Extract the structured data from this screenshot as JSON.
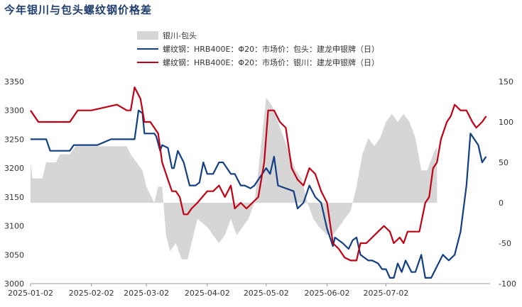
{
  "chart_data": {
    "type": "line",
    "title": "今年银川与包头螺纹钢价格差",
    "x_ticks": [
      "2025-01-02",
      "2025-02-02",
      "2025-03-02",
      "2025-04-02",
      "2025-05-02",
      "2025-06-02",
      "2025-07-02"
    ],
    "y_left": {
      "min": 3000,
      "max": 3350,
      "ticks": [
        3000,
        3050,
        3100,
        3150,
        3200,
        3250,
        3300,
        3350
      ]
    },
    "y_right": {
      "min": -100,
      "max": 150,
      "ticks": [
        -100,
        -50,
        0,
        50,
        100,
        150
      ]
    },
    "grid": false,
    "legend_position": "top",
    "series": [
      {
        "name": "银川-包头",
        "type": "area",
        "axis": "right",
        "color": "#d6d6d6",
        "points": [
          [
            "2025-01-02",
            50
          ],
          [
            "2025-01-03",
            30
          ],
          [
            "2025-01-08",
            30
          ],
          [
            "2025-01-10",
            50
          ],
          [
            "2025-01-15",
            50
          ],
          [
            "2025-01-17",
            60
          ],
          [
            "2025-01-22",
            60
          ],
          [
            "2025-01-25",
            70
          ],
          [
            "2025-02-05",
            70
          ],
          [
            "2025-02-20",
            70
          ],
          [
            "2025-02-22",
            60
          ],
          [
            "2025-02-25",
            50
          ],
          [
            "2025-02-28",
            40
          ],
          [
            "2025-03-02",
            20
          ],
          [
            "2025-03-04",
            10
          ],
          [
            "2025-03-06",
            0
          ],
          [
            "2025-03-08",
            20
          ],
          [
            "2025-03-10",
            20
          ],
          [
            "2025-03-12",
            -40
          ],
          [
            "2025-03-14",
            -60
          ],
          [
            "2025-03-17",
            -50
          ],
          [
            "2025-03-20",
            -70
          ],
          [
            "2025-03-23",
            -70
          ],
          [
            "2025-03-26",
            -40
          ],
          [
            "2025-03-28",
            -20
          ],
          [
            "2025-04-02",
            -30
          ],
          [
            "2025-04-05",
            -40
          ],
          [
            "2025-04-08",
            -50
          ],
          [
            "2025-04-11",
            -40
          ],
          [
            "2025-04-14",
            -20
          ],
          [
            "2025-04-17",
            -40
          ],
          [
            "2025-04-20",
            -30
          ],
          [
            "2025-04-23",
            -20
          ],
          [
            "2025-04-26",
            0
          ],
          [
            "2025-04-28",
            40
          ],
          [
            "2025-05-02",
            130
          ],
          [
            "2025-05-05",
            120
          ],
          [
            "2025-05-08",
            100
          ],
          [
            "2025-05-11",
            80
          ],
          [
            "2025-05-14",
            60
          ],
          [
            "2025-05-17",
            40
          ],
          [
            "2025-05-20",
            30
          ],
          [
            "2025-05-23",
            0
          ],
          [
            "2025-05-26",
            -20
          ],
          [
            "2025-05-29",
            -30
          ],
          [
            "2025-06-02",
            -40
          ],
          [
            "2025-06-05",
            -40
          ],
          [
            "2025-06-08",
            -30
          ],
          [
            "2025-06-11",
            -20
          ],
          [
            "2025-06-14",
            -10
          ],
          [
            "2025-06-17",
            20
          ],
          [
            "2025-06-20",
            60
          ],
          [
            "2025-06-23",
            80
          ],
          [
            "2025-06-26",
            70
          ],
          [
            "2025-06-29",
            80
          ],
          [
            "2025-07-02",
            100
          ],
          [
            "2025-07-05",
            110
          ],
          [
            "2025-07-08",
            100
          ],
          [
            "2025-07-11",
            110
          ],
          [
            "2025-07-14",
            100
          ],
          [
            "2025-07-17",
            80
          ],
          [
            "2025-07-20",
            40
          ],
          [
            "2025-07-23",
            40
          ],
          [
            "2025-07-26",
            60
          ],
          [
            "2025-07-28",
            70
          ]
        ]
      },
      {
        "name": "螺纹钢：HRB400E：Φ20：市场价：包头：建龙申银牌（日）",
        "type": "line",
        "axis": "left",
        "color": "#123f82",
        "points": [
          [
            "2025-01-02",
            3250
          ],
          [
            "2025-01-10",
            3250
          ],
          [
            "2025-01-12",
            3230
          ],
          [
            "2025-01-22",
            3230
          ],
          [
            "2025-01-24",
            3240
          ],
          [
            "2025-02-05",
            3240
          ],
          [
            "2025-02-12",
            3250
          ],
          [
            "2025-02-20",
            3250
          ],
          [
            "2025-02-24",
            3250
          ],
          [
            "2025-02-26",
            3300
          ],
          [
            "2025-02-28",
            3295
          ],
          [
            "2025-03-01",
            3260
          ],
          [
            "2025-03-06",
            3260
          ],
          [
            "2025-03-07",
            3255
          ],
          [
            "2025-03-09",
            3230
          ],
          [
            "2025-03-10",
            3240
          ],
          [
            "2025-03-13",
            3235
          ],
          [
            "2025-03-15",
            3200
          ],
          [
            "2025-03-16",
            3200
          ],
          [
            "2025-03-18",
            3230
          ],
          [
            "2025-03-21",
            3210
          ],
          [
            "2025-03-24",
            3170
          ],
          [
            "2025-03-27",
            3170
          ],
          [
            "2025-03-29",
            3175
          ],
          [
            "2025-03-31",
            3210
          ],
          [
            "2025-04-02",
            3190
          ],
          [
            "2025-04-05",
            3190
          ],
          [
            "2025-04-08",
            3210
          ],
          [
            "2025-04-10",
            3210
          ],
          [
            "2025-04-14",
            3190
          ],
          [
            "2025-04-16",
            3190
          ],
          [
            "2025-04-19",
            3170
          ],
          [
            "2025-04-21",
            3170
          ],
          [
            "2025-04-24",
            3165
          ],
          [
            "2025-04-26",
            3170
          ],
          [
            "2025-04-28",
            3180
          ],
          [
            "2025-05-02",
            3200
          ],
          [
            "2025-05-04",
            3190
          ],
          [
            "2025-05-06",
            3220
          ],
          [
            "2025-05-08",
            3170
          ],
          [
            "2025-05-12",
            3165
          ],
          [
            "2025-05-16",
            3160
          ],
          [
            "2025-05-18",
            3130
          ],
          [
            "2025-05-21",
            3140
          ],
          [
            "2025-05-24",
            3170
          ],
          [
            "2025-05-27",
            3150
          ],
          [
            "2025-05-30",
            3140
          ],
          [
            "2025-06-02",
            3095
          ],
          [
            "2025-06-05",
            3065
          ],
          [
            "2025-06-06",
            3080
          ],
          [
            "2025-06-10",
            3070
          ],
          [
            "2025-06-13",
            3060
          ],
          [
            "2025-06-15",
            3075
          ],
          [
            "2025-06-17",
            3080
          ],
          [
            "2025-06-19",
            3050
          ],
          [
            "2025-06-23",
            3040
          ],
          [
            "2025-06-25",
            3040
          ],
          [
            "2025-06-28",
            3035
          ],
          [
            "2025-06-30",
            3025
          ],
          [
            "2025-07-02",
            3025
          ],
          [
            "2025-07-04",
            3010
          ],
          [
            "2025-07-06",
            3010
          ],
          [
            "2025-07-08",
            3035
          ],
          [
            "2025-07-10",
            3020
          ],
          [
            "2025-07-12",
            3040
          ],
          [
            "2025-07-15",
            3020
          ],
          [
            "2025-07-17",
            3020
          ],
          [
            "2025-07-20",
            3050
          ],
          [
            "2025-07-22",
            3010
          ],
          [
            "2025-07-25",
            3010
          ],
          [
            "2025-07-28",
            3030
          ],
          [
            "2025-07-31",
            3050
          ],
          [
            "2025-08-03",
            3040
          ],
          [
            "2025-08-06",
            3050
          ],
          [
            "2025-08-09",
            3090
          ],
          [
            "2025-08-12",
            3170
          ],
          [
            "2025-08-14",
            3260
          ],
          [
            "2025-08-16",
            3250
          ],
          [
            "2025-08-18",
            3240
          ],
          [
            "2025-08-20",
            3210
          ],
          [
            "2025-08-22",
            3220
          ]
        ]
      },
      {
        "name": "螺纹钢：HRB400E：Φ20：市场价：银川：建龙申银牌（日）",
        "type": "line",
        "axis": "left",
        "color": "#c00013",
        "points": [
          [
            "2025-01-02",
            3300
          ],
          [
            "2025-01-04",
            3290
          ],
          [
            "2025-01-06",
            3280
          ],
          [
            "2025-01-22",
            3280
          ],
          [
            "2025-01-26",
            3300
          ],
          [
            "2025-02-02",
            3300
          ],
          [
            "2025-02-15",
            3310
          ],
          [
            "2025-02-20",
            3300
          ],
          [
            "2025-02-22",
            3300
          ],
          [
            "2025-02-24",
            3340
          ],
          [
            "2025-02-27",
            3320
          ],
          [
            "2025-03-01",
            3280
          ],
          [
            "2025-03-04",
            3280
          ],
          [
            "2025-03-06",
            3270
          ],
          [
            "2025-03-08",
            3260
          ],
          [
            "2025-03-10",
            3210
          ],
          [
            "2025-03-13",
            3180
          ],
          [
            "2025-03-15",
            3160
          ],
          [
            "2025-03-17",
            3160
          ],
          [
            "2025-03-19",
            3150
          ],
          [
            "2025-03-21",
            3120
          ],
          [
            "2025-03-23",
            3120
          ],
          [
            "2025-03-25",
            3130
          ],
          [
            "2025-03-28",
            3140
          ],
          [
            "2025-04-02",
            3160
          ],
          [
            "2025-04-05",
            3160
          ],
          [
            "2025-04-08",
            3170
          ],
          [
            "2025-04-11",
            3150
          ],
          [
            "2025-04-14",
            3170
          ],
          [
            "2025-04-16",
            3130
          ],
          [
            "2025-04-19",
            3140
          ],
          [
            "2025-04-22",
            3130
          ],
          [
            "2025-04-25",
            3140
          ],
          [
            "2025-04-28",
            3150
          ],
          [
            "2025-05-01",
            3210
          ],
          [
            "2025-05-03",
            3300
          ],
          [
            "2025-05-06",
            3300
          ],
          [
            "2025-05-09",
            3280
          ],
          [
            "2025-05-12",
            3270
          ],
          [
            "2025-05-15",
            3200
          ],
          [
            "2025-05-18",
            3180
          ],
          [
            "2025-05-21",
            3170
          ],
          [
            "2025-05-24",
            3200
          ],
          [
            "2025-05-27",
            3190
          ],
          [
            "2025-05-30",
            3160
          ],
          [
            "2025-06-02",
            3140
          ],
          [
            "2025-06-05",
            3070
          ],
          [
            "2025-06-08",
            3060
          ],
          [
            "2025-06-11",
            3045
          ],
          [
            "2025-06-14",
            3040
          ],
          [
            "2025-06-17",
            3040
          ],
          [
            "2025-06-19",
            3070
          ],
          [
            "2025-06-22",
            3070
          ],
          [
            "2025-06-25",
            3080
          ],
          [
            "2025-06-28",
            3090
          ],
          [
            "2025-07-01",
            3100
          ],
          [
            "2025-07-04",
            3090
          ],
          [
            "2025-07-06",
            3070
          ],
          [
            "2025-07-09",
            3080
          ],
          [
            "2025-07-11",
            3070
          ],
          [
            "2025-07-13",
            3090
          ],
          [
            "2025-07-16",
            3090
          ],
          [
            "2025-07-19",
            3090
          ],
          [
            "2025-07-22",
            3140
          ],
          [
            "2025-07-24",
            3150
          ],
          [
            "2025-07-26",
            3200
          ],
          [
            "2025-07-28",
            3210
          ],
          [
            "2025-07-30",
            3250
          ],
          [
            "2025-08-02",
            3280
          ],
          [
            "2025-08-04",
            3290
          ],
          [
            "2025-08-06",
            3310
          ],
          [
            "2025-08-09",
            3300
          ],
          [
            "2025-08-12",
            3300
          ],
          [
            "2025-08-15",
            3280
          ],
          [
            "2025-08-17",
            3270
          ],
          [
            "2025-08-20",
            3280
          ],
          [
            "2025-08-22",
            3290
          ]
        ]
      }
    ]
  }
}
